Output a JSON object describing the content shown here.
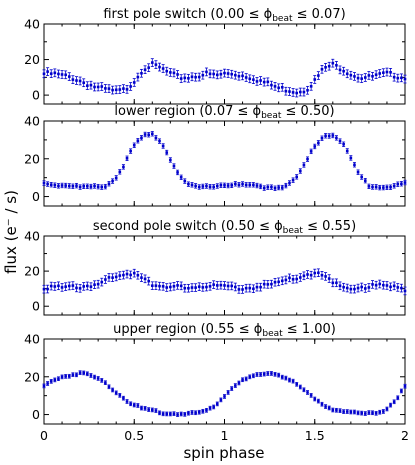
{
  "chart_data": {
    "type": "scatter",
    "xlabel": "spin phase",
    "ylabel": "flux (e⁻ / s)",
    "xlim": [
      0,
      2
    ],
    "xticks": [
      "0",
      "0.5",
      "1",
      "1.5",
      "2"
    ],
    "ylim": [
      -5,
      40
    ],
    "yticks": [
      "0",
      "20",
      "40"
    ],
    "marker_color": "#0000cc",
    "panels": [
      {
        "title": "first pole switch",
        "range_text": "(0.00 ≤ ϕ",
        "beat_sub": "beat",
        "range_end": " ≤ 0.07)",
        "x": [
          0.0,
          0.05,
          0.1,
          0.15,
          0.2,
          0.25,
          0.3,
          0.35,
          0.4,
          0.45,
          0.5,
          0.55,
          0.6,
          0.65,
          0.7,
          0.75,
          0.8,
          0.85,
          0.9,
          0.95,
          1.0,
          1.05,
          1.1,
          1.15,
          1.2,
          1.25,
          1.3,
          1.35,
          1.4,
          1.45,
          1.5,
          1.55,
          1.6,
          1.65,
          1.7,
          1.75,
          1.8,
          1.85,
          1.9,
          1.95,
          2.0
        ],
        "y": [
          12,
          12,
          11,
          10,
          8,
          6,
          4,
          3,
          2,
          3,
          8,
          15,
          17,
          15,
          12,
          10,
          10,
          11,
          12,
          11,
          12,
          12,
          11,
          10,
          8,
          6,
          4,
          3,
          2,
          3,
          8,
          15,
          17,
          15,
          12,
          10,
          10,
          11,
          12,
          11,
          10
        ],
        "err": 2.2
      },
      {
        "title": "lower region",
        "range_text": "(0.07 ≤ ϕ",
        "beat_sub": "beat",
        "range_end": " ≤ 0.50)",
        "x": [
          0.0,
          0.05,
          0.1,
          0.15,
          0.2,
          0.25,
          0.3,
          0.35,
          0.4,
          0.45,
          0.5,
          0.55,
          0.6,
          0.65,
          0.7,
          0.75,
          0.8,
          0.85,
          0.9,
          0.95,
          1.0,
          1.05,
          1.1,
          1.15,
          1.2,
          1.25,
          1.3,
          1.35,
          1.4,
          1.45,
          1.5,
          1.55,
          1.6,
          1.65,
          1.7,
          1.75,
          1.8,
          1.85,
          1.9,
          1.95,
          2.0
        ],
        "y": [
          7,
          6.5,
          6,
          6,
          5,
          5,
          5,
          6,
          10,
          18,
          27,
          32,
          33,
          29,
          20,
          11,
          6,
          5,
          5,
          6,
          6,
          6.5,
          6,
          6,
          5,
          5,
          5,
          6,
          10,
          18,
          27,
          32,
          33,
          29,
          20,
          11,
          6,
          5,
          5,
          6,
          7
        ],
        "err": 1.2
      },
      {
        "title": "second pole switch",
        "range_text": "(0.50 ≤ ϕ",
        "beat_sub": "beat",
        "range_end": " ≤ 0.55)",
        "x": [
          0.0,
          0.05,
          0.1,
          0.15,
          0.2,
          0.25,
          0.3,
          0.35,
          0.4,
          0.45,
          0.5,
          0.55,
          0.6,
          0.65,
          0.7,
          0.75,
          0.8,
          0.85,
          0.9,
          0.95,
          1.0,
          1.05,
          1.1,
          1.15,
          1.2,
          1.25,
          1.3,
          1.35,
          1.4,
          1.45,
          1.5,
          1.55,
          1.6,
          1.65,
          1.7,
          1.75,
          1.8,
          1.85,
          1.9,
          1.95,
          2.0
        ],
        "y": [
          11,
          11,
          10,
          11,
          11,
          12,
          13,
          15,
          16,
          18,
          19,
          17,
          13,
          11,
          10,
          11,
          11,
          12,
          11,
          11,
          11,
          11,
          10,
          11,
          11,
          12,
          13,
          15,
          16,
          18,
          19,
          17,
          13,
          11,
          10,
          11,
          11,
          12,
          11,
          11,
          10
        ],
        "err": 2.2
      },
      {
        "title": "upper region",
        "range_text": "(0.55 ≤ ϕ",
        "beat_sub": "beat",
        "range_end": " ≤ 1.00)",
        "x": [
          0.0,
          0.05,
          0.1,
          0.15,
          0.2,
          0.25,
          0.3,
          0.35,
          0.4,
          0.45,
          0.5,
          0.55,
          0.6,
          0.65,
          0.7,
          0.75,
          0.8,
          0.85,
          0.9,
          0.95,
          1.0,
          1.05,
          1.1,
          1.15,
          1.2,
          1.25,
          1.3,
          1.35,
          1.4,
          1.45,
          1.5,
          1.55,
          1.6,
          1.65,
          1.7,
          1.75,
          1.8,
          1.85,
          1.9,
          1.95,
          2.0
        ],
        "y": [
          15,
          18,
          20,
          21,
          22,
          21,
          19,
          16,
          12,
          8,
          5,
          3,
          2,
          1,
          0.5,
          0.5,
          0.5,
          1,
          2,
          5,
          10,
          15,
          18,
          20,
          21,
          22,
          21,
          19,
          16,
          12,
          8,
          5,
          3,
          2,
          1,
          0.5,
          0.5,
          1,
          3,
          8,
          15
        ],
        "err": 1.0
      }
    ]
  }
}
